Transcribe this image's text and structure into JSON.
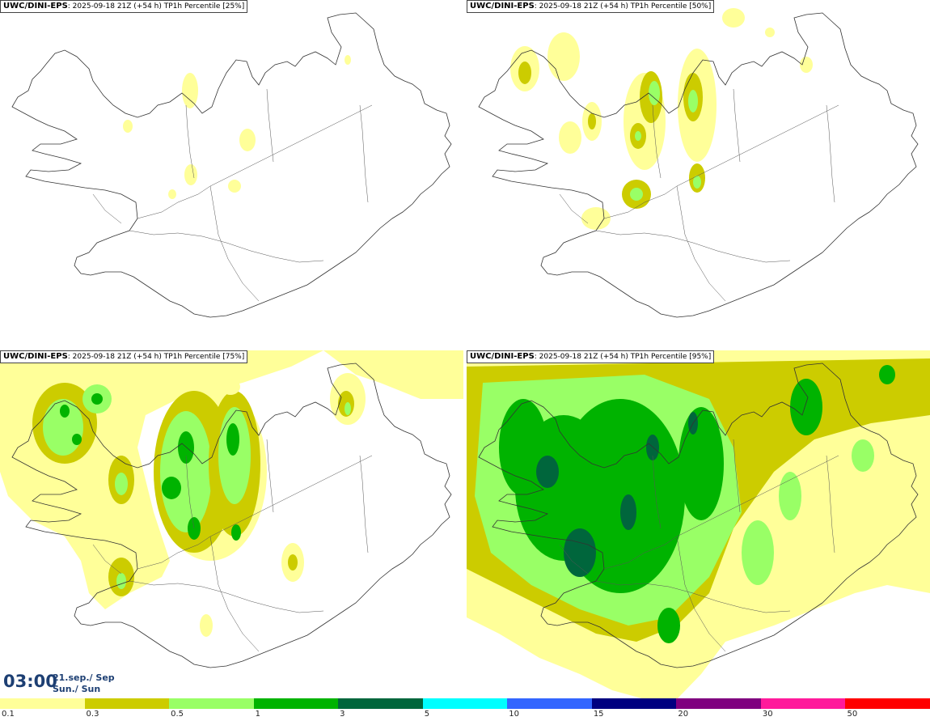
{
  "panels": [
    {
      "model": "UWC/DINI-EPS",
      "info": ": 2025-09-18 21Z (+54 h) TP1h Percentile [25%]"
    },
    {
      "model": "UWC/DINI-EPS",
      "info": ": 2025-09-18 21Z (+54 h) TP1h Percentile [50%]"
    },
    {
      "model": "UWC/DINI-EPS",
      "info": ": 2025-09-18 21Z (+54 h) TP1h Percentile [75%]"
    },
    {
      "model": "UWC/DINI-EPS",
      "info": ": 2025-09-18 21Z (+54 h) TP1h Percentile [95%]"
    }
  ],
  "time": {
    "clock": "03:00",
    "date": "21.sep./ Sep",
    "weekday": "Sun./ Sun"
  },
  "legend": {
    "colors": [
      "#ffff99",
      "#cccc00",
      "#99ff66",
      "#00b300",
      "#00663c",
      "#00ffff",
      "#3366ff",
      "#000080",
      "#7f007f",
      "#ff1a9b",
      "#ff0000"
    ],
    "ticks": [
      "0.1",
      "0.3",
      "0.5",
      "1",
      "3",
      "5",
      "10",
      "15",
      "20",
      "30",
      "50"
    ]
  }
}
